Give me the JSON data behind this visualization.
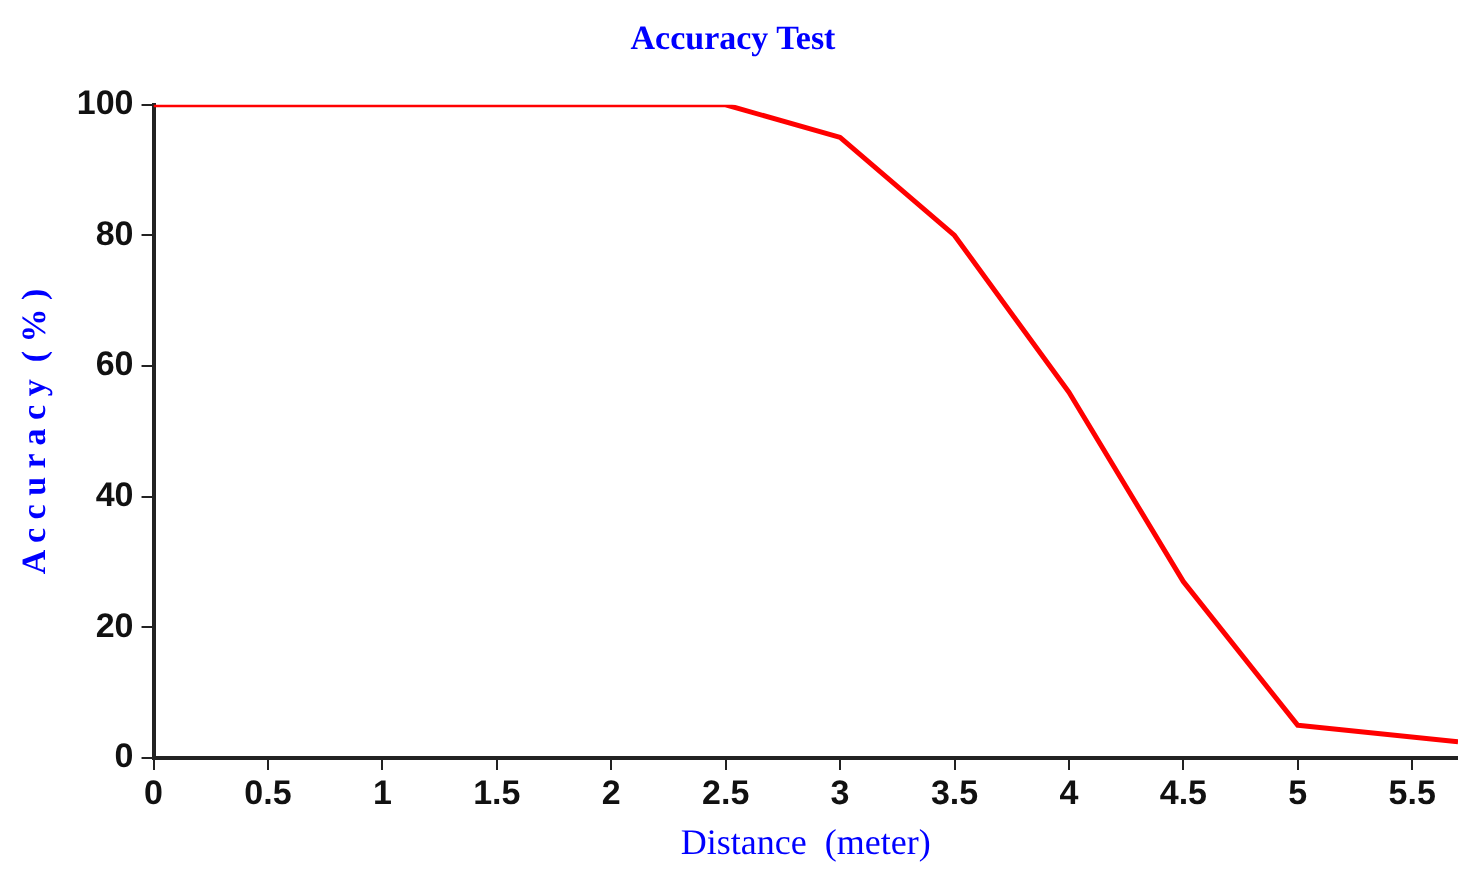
{
  "chart_data": {
    "type": "line",
    "title": "Accuracy Test",
    "xlabel": "Distance  (meter)",
    "ylabel": "A c c u r a c y  ( % )",
    "x": [
      0,
      2.5,
      3,
      3.5,
      4,
      4.5,
      5,
      5.7
    ],
    "series": [
      {
        "color": "#ff0000",
        "values": [
          100,
          100,
          95,
          80,
          56,
          27,
          5,
          2.5
        ]
      }
    ],
    "xlim": [
      0,
      5.7
    ],
    "xticks": [
      0,
      0.5,
      1,
      1.5,
      2,
      2.5,
      3,
      3.5,
      4,
      4.5,
      5,
      5.5
    ],
    "ylim": [
      0,
      100
    ],
    "yticks": [
      0,
      20,
      40,
      60,
      80,
      100
    ],
    "grid": false,
    "legend": false,
    "marker": "none",
    "line_style": "solid"
  }
}
